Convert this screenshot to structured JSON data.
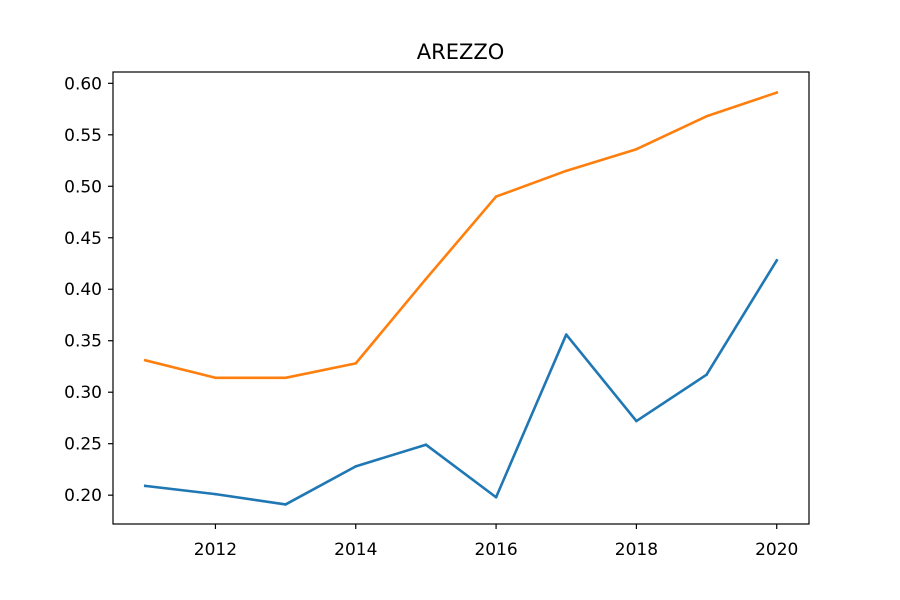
{
  "chart_data": {
    "type": "line",
    "title": "AREZZO",
    "xlabel": "",
    "ylabel": "",
    "x": [
      2011,
      2012,
      2013,
      2014,
      2015,
      2016,
      2017,
      2018,
      2019,
      2020
    ],
    "xlim": [
      2010.54,
      2020.46
    ],
    "ylim": [
      0.172,
      0.611
    ],
    "xticks": [
      2012,
      2014,
      2016,
      2018,
      2020
    ],
    "xtick_labels": [
      "2012",
      "2014",
      "2016",
      "2018",
      "2020"
    ],
    "yticks": [
      0.2,
      0.25,
      0.3,
      0.35,
      0.4,
      0.45,
      0.5,
      0.55,
      0.6
    ],
    "ytick_labels": [
      "0.20",
      "0.25",
      "0.30",
      "0.35",
      "0.40",
      "0.45",
      "0.50",
      "0.55",
      "0.60"
    ],
    "grid": false,
    "series": [
      {
        "color": "#1f77b4",
        "values": [
          0.209,
          0.201,
          0.191,
          0.228,
          0.249,
          0.198,
          0.356,
          0.272,
          0.317,
          0.428
        ]
      },
      {
        "color": "#ff7f0e",
        "values": [
          0.331,
          0.314,
          0.314,
          0.328,
          0.41,
          0.49,
          0.515,
          0.536,
          0.568,
          0.591
        ]
      }
    ]
  }
}
